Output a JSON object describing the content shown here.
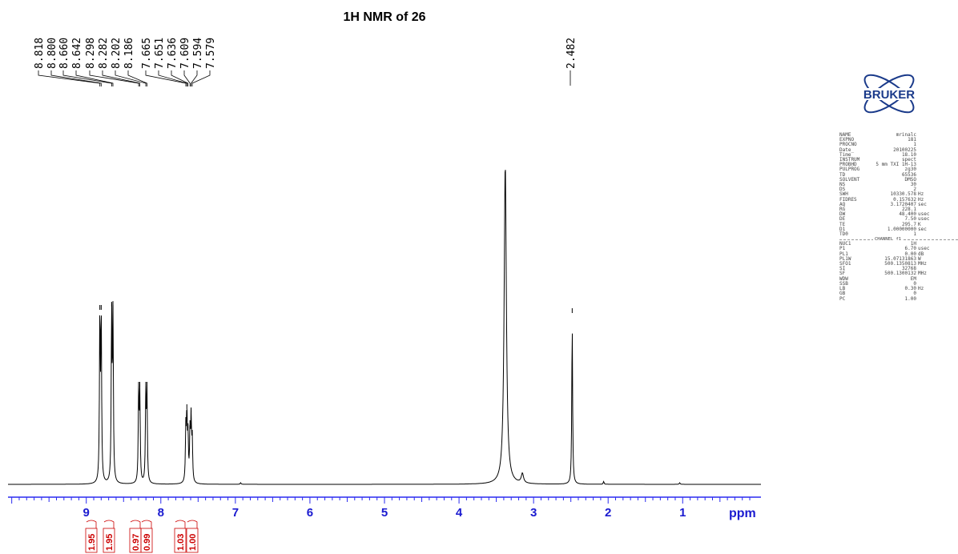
{
  "chart_data": {
    "type": "line",
    "title": "1H NMR of 26",
    "xlabel": "ppm",
    "xlim": [
      10.05,
      -0.05
    ],
    "x_ticks": [
      9,
      8,
      7,
      6,
      5,
      4,
      3,
      2,
      1
    ],
    "x_tick_labels": [
      "9",
      "8",
      "7",
      "6",
      "5",
      "4",
      "3",
      "2",
      "1"
    ],
    "grid": false,
    "peaks": [
      {
        "ppm": 8.818,
        "height": 0.51
      },
      {
        "ppm": 8.8,
        "height": 0.51
      },
      {
        "ppm": 8.66,
        "height": 0.52
      },
      {
        "ppm": 8.642,
        "height": 0.51
      },
      {
        "ppm": 8.298,
        "height": 0.27
      },
      {
        "ppm": 8.282,
        "height": 0.27
      },
      {
        "ppm": 8.202,
        "height": 0.27
      },
      {
        "ppm": 8.186,
        "height": 0.27
      },
      {
        "ppm": 7.665,
        "height": 0.16
      },
      {
        "ppm": 7.651,
        "height": 0.2
      },
      {
        "ppm": 7.636,
        "height": 0.14
      },
      {
        "ppm": 7.609,
        "height": 0.15
      },
      {
        "ppm": 7.594,
        "height": 0.19
      },
      {
        "ppm": 7.579,
        "height": 0.13
      },
      {
        "ppm": 6.93,
        "height": 0.005
      },
      {
        "ppm": 3.38,
        "height": 1.0
      },
      {
        "ppm": 3.15,
        "height": 0.03
      },
      {
        "ppm": 2.482,
        "height": 0.5
      },
      {
        "ppm": 2.06,
        "height": 0.009
      },
      {
        "ppm": 1.04,
        "height": 0.005
      }
    ],
    "peak_labels": [
      "8.818",
      "8.800",
      "8.660",
      "8.642",
      "8.298",
      "8.282",
      "8.202",
      "8.186",
      "7.665",
      "7.651",
      "7.636",
      "7.609",
      "7.594",
      "7.579",
      "2.482"
    ],
    "integrals": [
      {
        "ppm": 8.81,
        "value": "1.95"
      },
      {
        "ppm": 8.65,
        "value": "1.95"
      },
      {
        "ppm": 8.29,
        "value": "0.97"
      },
      {
        "ppm": 8.19,
        "value": "0.99"
      },
      {
        "ppm": 7.65,
        "value": "1.03"
      },
      {
        "ppm": 7.59,
        "value": "1.00"
      }
    ]
  },
  "logo": {
    "text": "BRUKER",
    "color": "#1a3a8a"
  },
  "acquisition_params": [
    {
      "key": "NAME",
      "value": "mrinalc",
      "unit": ""
    },
    {
      "key": "EXPNO",
      "value": "181",
      "unit": ""
    },
    {
      "key": "PROCNO",
      "value": "1",
      "unit": ""
    },
    {
      "key": "Date_",
      "value": "20100225",
      "unit": ""
    },
    {
      "key": "Time",
      "value": "18.10",
      "unit": ""
    },
    {
      "key": "INSTRUM",
      "value": "spect",
      "unit": ""
    },
    {
      "key": "PROBHD",
      "value": "5 mm TXI 1H-13",
      "unit": ""
    },
    {
      "key": "PULPROG",
      "value": "zg30",
      "unit": ""
    },
    {
      "key": "TD",
      "value": "65536",
      "unit": ""
    },
    {
      "key": "SOLVENT",
      "value": "DMSO",
      "unit": ""
    },
    {
      "key": "NS",
      "value": "30",
      "unit": ""
    },
    {
      "key": "DS",
      "value": "2",
      "unit": ""
    },
    {
      "key": "SWH",
      "value": "10330.578",
      "unit": "Hz"
    },
    {
      "key": "FIDRES",
      "value": "0.157632",
      "unit": "Hz"
    },
    {
      "key": "AQ",
      "value": "3.1720407",
      "unit": "sec"
    },
    {
      "key": "RG",
      "value": "228.1",
      "unit": ""
    },
    {
      "key": "DW",
      "value": "48.400",
      "unit": "usec"
    },
    {
      "key": "DE",
      "value": "7.50",
      "unit": "usec"
    },
    {
      "key": "TE",
      "value": "295.7",
      "unit": "K"
    },
    {
      "key": "D1",
      "value": "1.00000000",
      "unit": "sec"
    },
    {
      "key": "TD0",
      "value": "1",
      "unit": ""
    }
  ],
  "channel_header": "CHANNEL f1",
  "channel_params": [
    {
      "key": "NUC1",
      "value": "1H",
      "unit": ""
    },
    {
      "key": "P1",
      "value": "6.70",
      "unit": "usec"
    },
    {
      "key": "PL1",
      "value": "0.00",
      "unit": "dB"
    },
    {
      "key": "PL1W",
      "value": "15.07131863",
      "unit": "W"
    },
    {
      "key": "SFO1",
      "value": "500.1350813",
      "unit": "MHz"
    },
    {
      "key": "SI",
      "value": "32768",
      "unit": ""
    },
    {
      "key": "SF",
      "value": "500.1300132",
      "unit": "MHz"
    },
    {
      "key": "WDW",
      "value": "EM",
      "unit": ""
    },
    {
      "key": "SSB",
      "value": "0",
      "unit": ""
    },
    {
      "key": "LB",
      "value": "0.30",
      "unit": "Hz"
    },
    {
      "key": "GB",
      "value": "0",
      "unit": ""
    },
    {
      "key": "PC",
      "value": "1.00",
      "unit": ""
    }
  ]
}
